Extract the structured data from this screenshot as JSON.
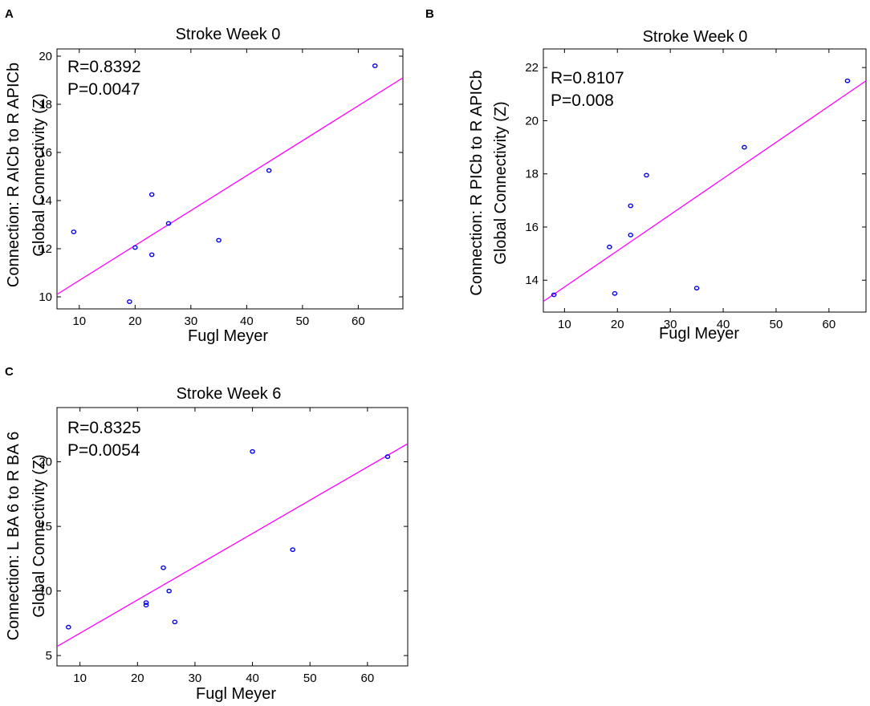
{
  "colors": {
    "points": "#0000ee",
    "fit_line": "#ff00ff",
    "axes": "#000000"
  },
  "chart_data": [
    {
      "type": "scatter",
      "panel_label": "A",
      "title": "Stroke Week 0",
      "xlabel": "Fugl Meyer",
      "ylabel_lines": [
        "Connection: R AICb to R APICb",
        "Global Connectivity (Z)"
      ],
      "annotations": [
        "R=0.8392",
        "P=0.0047"
      ],
      "xlim": [
        6,
        68
      ],
      "ylim": [
        9.5,
        20.3
      ],
      "xticks": [
        10,
        20,
        30,
        40,
        50,
        60
      ],
      "yticks": [
        10,
        12,
        14,
        16,
        18,
        20
      ],
      "points": [
        {
          "x": 9,
          "y": 12.7
        },
        {
          "x": 19,
          "y": 9.8
        },
        {
          "x": 20,
          "y": 12.05
        },
        {
          "x": 23,
          "y": 14.25
        },
        {
          "x": 23,
          "y": 11.75
        },
        {
          "x": 26,
          "y": 13.05
        },
        {
          "x": 35,
          "y": 12.35
        },
        {
          "x": 44,
          "y": 15.25
        },
        {
          "x": 63,
          "y": 19.6
        }
      ],
      "fit_line": {
        "x": [
          6,
          68
        ],
        "y": [
          10.1,
          19.1
        ]
      }
    },
    {
      "type": "scatter",
      "panel_label": "B",
      "title": "Stroke Week 0",
      "xlabel": "Fugl Meyer",
      "ylabel_lines": [
        "Connection: R PICb to R APICb",
        "Global Connectivity (Z)"
      ],
      "annotations": [
        "R=0.8107",
        "P=0.008"
      ],
      "xlim": [
        6,
        67
      ],
      "ylim": [
        12.8,
        22.7
      ],
      "xticks": [
        10,
        20,
        30,
        40,
        50,
        60
      ],
      "yticks": [
        14,
        16,
        18,
        20,
        22
      ],
      "points": [
        {
          "x": 8,
          "y": 13.45
        },
        {
          "x": 18.5,
          "y": 15.25
        },
        {
          "x": 19.5,
          "y": 13.5
        },
        {
          "x": 22.5,
          "y": 16.8
        },
        {
          "x": 22.5,
          "y": 15.7
        },
        {
          "x": 25.5,
          "y": 17.95
        },
        {
          "x": 35,
          "y": 13.7
        },
        {
          "x": 44,
          "y": 19.0
        },
        {
          "x": 63.5,
          "y": 21.5
        }
      ],
      "fit_line": {
        "x": [
          6,
          67
        ],
        "y": [
          13.2,
          21.5
        ]
      }
    },
    {
      "type": "scatter",
      "panel_label": "C",
      "title": "Stroke Week 6",
      "xlabel": "Fugl Meyer",
      "ylabel_lines": [
        "Connection: L BA 6 to R BA 6",
        "Global Connectivity (Z)"
      ],
      "annotations": [
        "R=0.8325",
        "P=0.0054"
      ],
      "xlim": [
        6,
        67
      ],
      "ylim": [
        4.2,
        24.2
      ],
      "xticks": [
        10,
        20,
        30,
        40,
        50,
        60
      ],
      "yticks": [
        5,
        10,
        15,
        20
      ],
      "points": [
        {
          "x": 8,
          "y": 7.2
        },
        {
          "x": 21.5,
          "y": 8.9
        },
        {
          "x": 21.5,
          "y": 9.1
        },
        {
          "x": 24.5,
          "y": 11.8
        },
        {
          "x": 25.5,
          "y": 10.0
        },
        {
          "x": 26.5,
          "y": 7.6
        },
        {
          "x": 40,
          "y": 20.8
        },
        {
          "x": 47,
          "y": 13.2
        },
        {
          "x": 63.5,
          "y": 20.4
        }
      ],
      "fit_line": {
        "x": [
          6,
          67
        ],
        "y": [
          5.7,
          21.4
        ]
      }
    }
  ]
}
